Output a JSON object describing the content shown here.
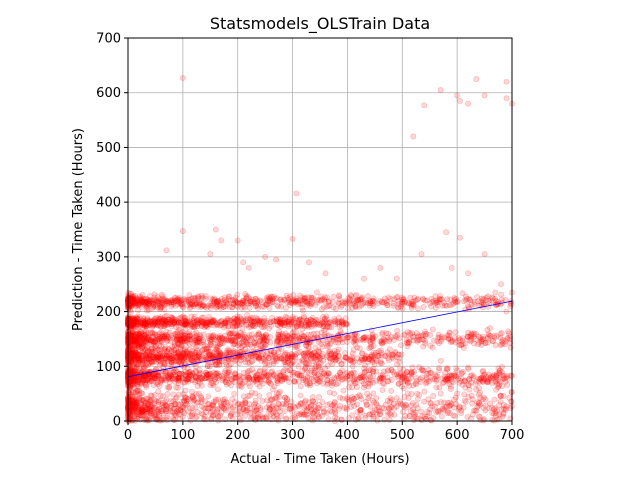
{
  "chart_data": {
    "type": "scatter",
    "title": "Statsmodels_OLSTrain Data",
    "xlabel": "Actual - Time Taken (Hours)",
    "ylabel": "Prediction - Time Taken (Hours)",
    "xlim": [
      0,
      700
    ],
    "ylim": [
      0,
      700
    ],
    "xticks": [
      0,
      100,
      200,
      300,
      400,
      500,
      600,
      700
    ],
    "yticks": [
      0,
      100,
      200,
      300,
      400,
      500,
      600,
      700
    ],
    "grid": true,
    "point_color": "#ff0000",
    "point_alpha": 0.15,
    "fit_line_color": "#0000ff",
    "fit_line": {
      "x": [
        0,
        700
      ],
      "y": [
        81,
        219
      ]
    },
    "bands": [
      {
        "y_center": 25,
        "y_spread": 25,
        "x_range": [
          0,
          700
        ],
        "density": 1.0
      },
      {
        "y_center": 80,
        "y_spread": 14,
        "x_range": [
          0,
          700
        ],
        "density": 1.0
      },
      {
        "y_center": 118,
        "y_spread": 14,
        "x_range": [
          0,
          500
        ],
        "density": 0.9
      },
      {
        "y_center": 150,
        "y_spread": 12,
        "x_range": [
          0,
          700
        ],
        "density": 0.9
      },
      {
        "y_center": 180,
        "y_spread": 8,
        "x_range": [
          0,
          400
        ],
        "density": 0.7
      },
      {
        "y_center": 218,
        "y_spread": 10,
        "x_range": [
          0,
          700
        ],
        "density": 0.8
      }
    ],
    "outliers": [
      [
        100,
        627
      ],
      [
        307,
        416
      ],
      [
        100,
        347
      ],
      [
        160,
        350
      ],
      [
        170,
        330
      ],
      [
        200,
        330
      ],
      [
        300,
        333
      ],
      [
        70,
        312
      ],
      [
        150,
        305
      ],
      [
        520,
        520
      ],
      [
        540,
        577
      ],
      [
        570,
        605
      ],
      [
        600,
        595
      ],
      [
        605,
        585
      ],
      [
        620,
        580
      ],
      [
        635,
        625
      ],
      [
        650,
        595
      ],
      [
        690,
        590
      ],
      [
        690,
        620
      ],
      [
        700,
        580
      ],
      [
        605,
        335
      ],
      [
        580,
        345
      ],
      [
        650,
        305
      ],
      [
        535,
        305
      ],
      [
        210,
        290
      ],
      [
        220,
        280
      ],
      [
        250,
        300
      ],
      [
        270,
        295
      ],
      [
        330,
        290
      ],
      [
        360,
        270
      ],
      [
        430,
        260
      ],
      [
        460,
        280
      ],
      [
        490,
        260
      ],
      [
        590,
        280
      ],
      [
        620,
        270
      ],
      [
        680,
        250
      ],
      [
        700,
        235
      ],
      [
        690,
        200
      ],
      [
        660,
        170
      ],
      [
        610,
        140
      ],
      [
        570,
        110
      ],
      [
        690,
        80
      ],
      [
        640,
        60
      ],
      [
        600,
        50
      ],
      [
        570,
        50
      ],
      [
        520,
        65
      ],
      [
        480,
        55
      ],
      [
        440,
        45
      ]
    ]
  }
}
